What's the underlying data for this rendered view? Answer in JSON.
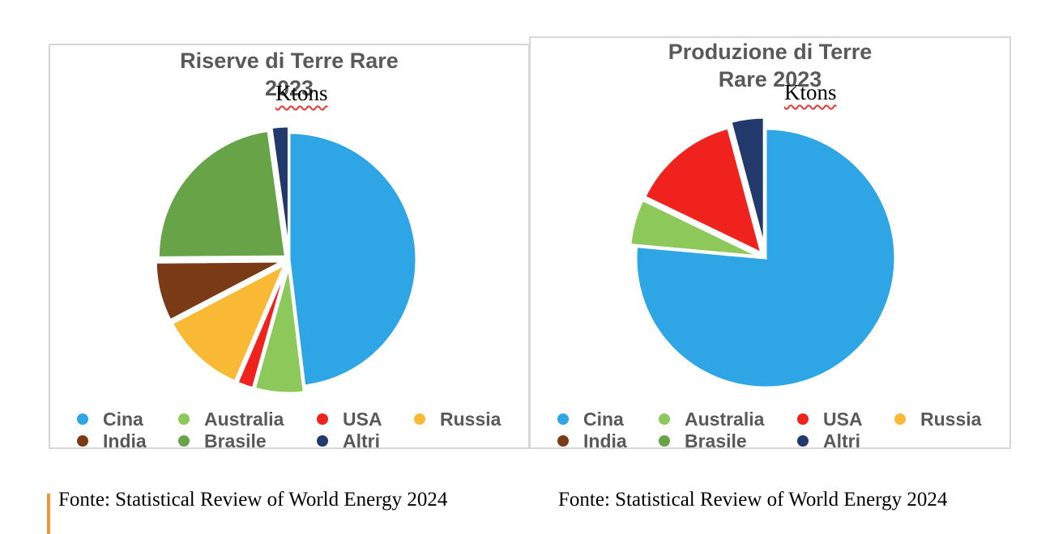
{
  "chart_data": [
    {
      "type": "pie",
      "title_lines": [
        "Riserve di Terre Rare",
        "2023"
      ],
      "unit": "Ktons",
      "categories": [
        "Cina",
        "Australia",
        "USA",
        "Russia",
        "India",
        "Brasile",
        "Altri"
      ],
      "values": [
        44000,
        5700,
        1900,
        10000,
        6900,
        21000,
        2000
      ],
      "colors": [
        "#2ea6e6",
        "#8cc85a",
        "#f0221e",
        "#f9b934",
        "#7b3a16",
        "#67a347",
        "#22396b"
      ],
      "legend_position": "bottom",
      "source": "Fonte: Statistical Review of World Energy 2024"
    },
    {
      "type": "pie",
      "title_lines": [
        "Produzione di Terre",
        "Rare 2023"
      ],
      "unit": "Ktons",
      "categories": [
        "Cina",
        "Australia",
        "USA",
        "Russia",
        "India",
        "Brasile",
        "Altri"
      ],
      "values": [
        240,
        18,
        43,
        0,
        0,
        0,
        13
      ],
      "colors": [
        "#2ea6e6",
        "#8cc85a",
        "#f0221e",
        "#f9b934",
        "#7b3a16",
        "#67a347",
        "#22396b"
      ],
      "legend_position": "bottom",
      "source": "Fonte: Statistical Review of World Energy 2024"
    }
  ]
}
